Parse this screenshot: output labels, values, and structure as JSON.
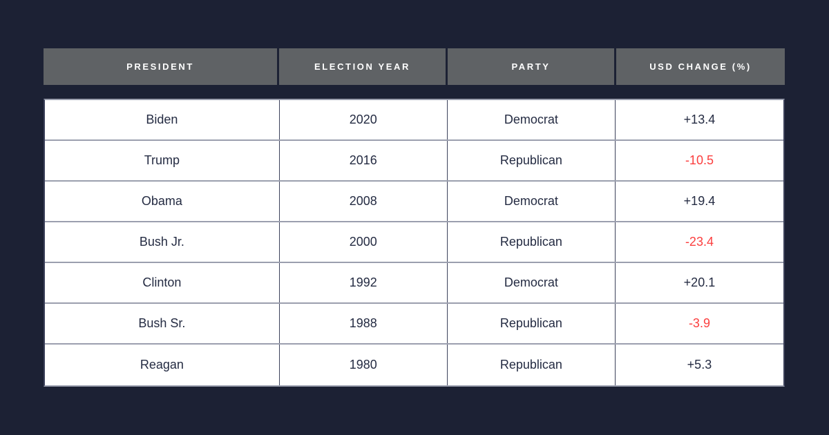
{
  "theme": {
    "background": "#1c2134",
    "header_bg": "#5f6265",
    "header_text": "#ffffff",
    "body_text": "#242b42",
    "negative": "#fb3e3e",
    "horizontal_border": "#9b9fae",
    "vertical_border": "#3c415a"
  },
  "table": {
    "columns": [
      "PRESIDENT",
      "ELECTION YEAR",
      "PARTY",
      "USD CHANGE (%)"
    ],
    "rows": [
      {
        "president": "Biden",
        "year": "2020",
        "party": "Democrat",
        "usd_change": "+13.4",
        "trend": "positive"
      },
      {
        "president": "Trump",
        "year": "2016",
        "party": "Republican",
        "usd_change": "-10.5",
        "trend": "negative"
      },
      {
        "president": "Obama",
        "year": "2008",
        "party": "Democrat",
        "usd_change": "+19.4",
        "trend": "positive"
      },
      {
        "president": "Bush Jr.",
        "year": "2000",
        "party": "Republican",
        "usd_change": "-23.4",
        "trend": "negative"
      },
      {
        "president": "Clinton",
        "year": "1992",
        "party": "Democrat",
        "usd_change": "+20.1",
        "trend": "positive"
      },
      {
        "president": "Bush Sr.",
        "year": "1988",
        "party": "Republican",
        "usd_change": "-3.9",
        "trend": "negative"
      },
      {
        "president": "Reagan",
        "year": "1980",
        "party": "Republican",
        "usd_change": "+5.3",
        "trend": "positive"
      }
    ]
  },
  "chart_data": {
    "type": "table",
    "title": "",
    "columns": [
      "PRESIDENT",
      "ELECTION YEAR",
      "PARTY",
      "USD CHANGE (%)"
    ],
    "rows": [
      {
        "president": "Biden",
        "election_year": 2020,
        "party": "Democrat",
        "usd_change_pct": 13.4
      },
      {
        "president": "Trump",
        "election_year": 2016,
        "party": "Republican",
        "usd_change_pct": -10.5
      },
      {
        "president": "Obama",
        "election_year": 2008,
        "party": "Democrat",
        "usd_change_pct": 19.4
      },
      {
        "president": "Bush Jr.",
        "election_year": 2000,
        "party": "Republican",
        "usd_change_pct": -23.4
      },
      {
        "president": "Clinton",
        "election_year": 1992,
        "party": "Democrat",
        "usd_change_pct": 20.1
      },
      {
        "president": "Bush Sr.",
        "election_year": 1988,
        "party": "Republican",
        "usd_change_pct": -3.9
      },
      {
        "president": "Reagan",
        "election_year": 1980,
        "party": "Republican",
        "usd_change_pct": 5.3
      }
    ],
    "layout": {
      "negative_values_colored": true,
      "negative_color": "#fb3e3e",
      "grid": "on"
    }
  }
}
